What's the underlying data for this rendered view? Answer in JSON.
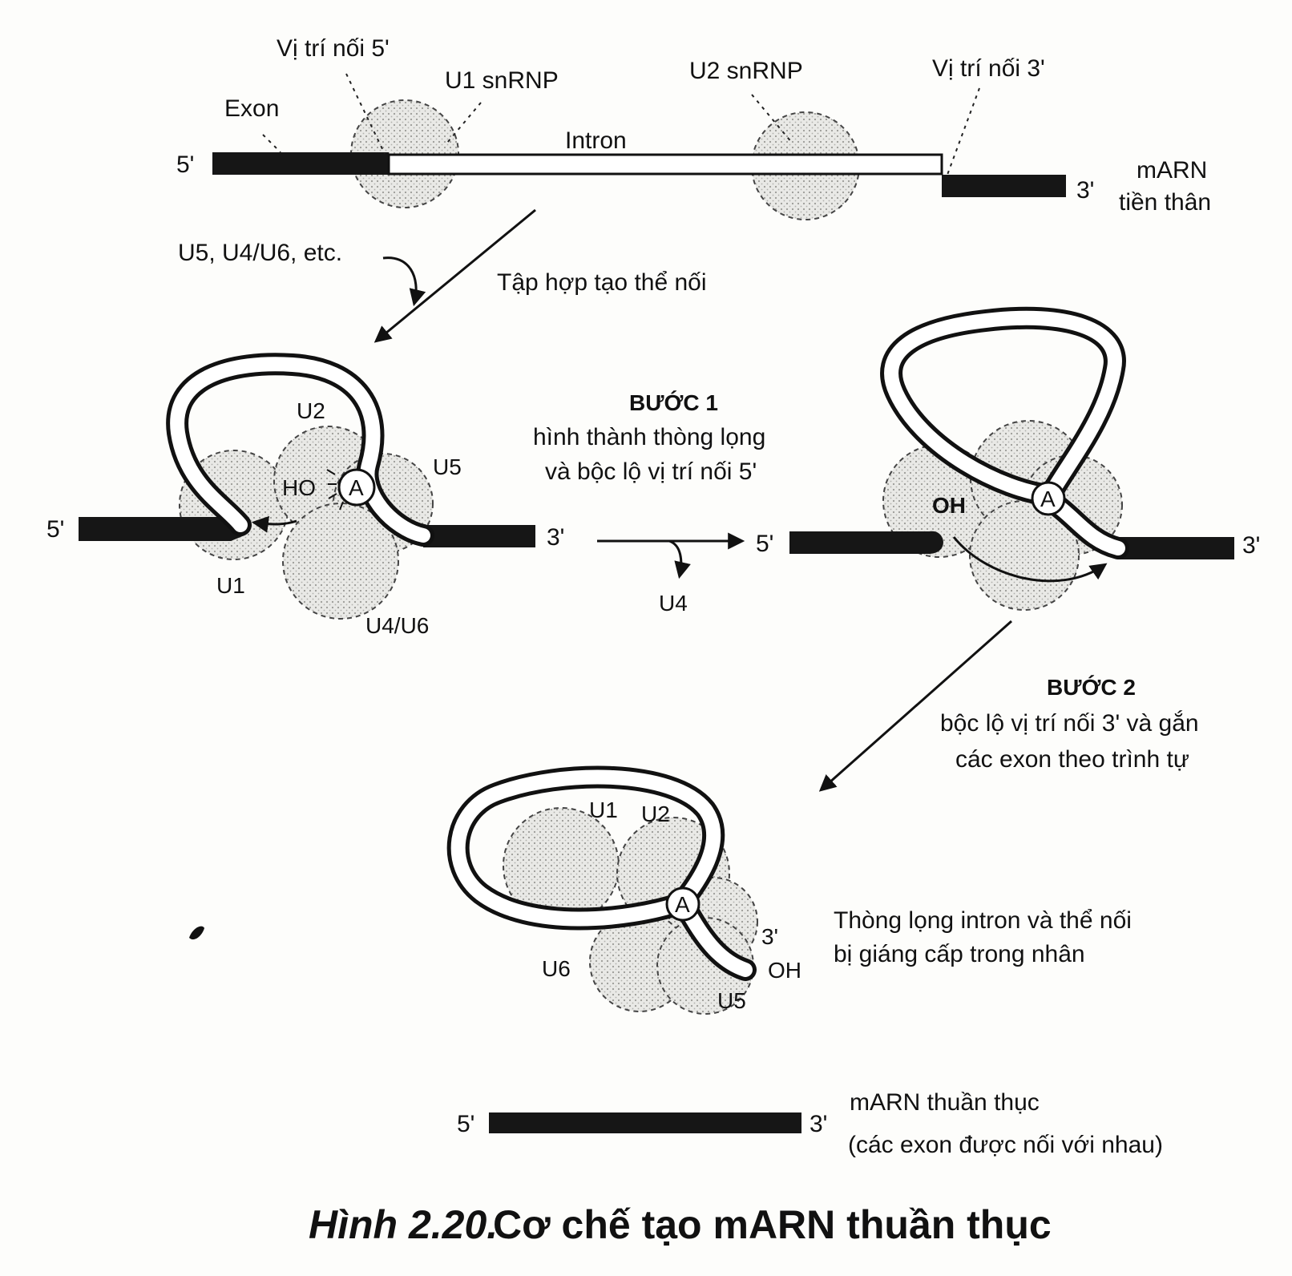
{
  "top": {
    "splice5_label": "Vị trí nối 5'",
    "u1_label": "U1 snRNP",
    "u2_label": "U2 snRNP",
    "splice3_label": "Vị trí nối 3'",
    "exon_label": "Exon",
    "intron_label": "Intron",
    "end5": "5'",
    "end3": "3'",
    "premrna_line1": "mARN",
    "premrna_line2": "tiền thân"
  },
  "assembly": {
    "factors": "U5, U4/U6, etc.",
    "label": "Tập hợp tạo thể nối"
  },
  "step1_complex": {
    "u2": "U2",
    "u5": "U5",
    "u1": "U1",
    "u4u6": "U4/U6",
    "ho": "HO",
    "a": "A",
    "end5": "5'",
    "end3": "3'"
  },
  "step1": {
    "title": "BƯỚC 1",
    "line1": "hình thành thòng lọng",
    "line2": "và bộc lộ vị trí nối 5'",
    "released": "U4"
  },
  "step1_result": {
    "oh": "OH",
    "a": "A",
    "end5": "5'",
    "end3": "3'"
  },
  "step2": {
    "title": "BƯỚC 2",
    "line1": "bộc lộ vị trí nối 3' và gắn",
    "line2": "các exon theo trình tự"
  },
  "lariat": {
    "u1": "U1",
    "u2": "U2",
    "a": "A",
    "end3": "3'",
    "oh": "OH",
    "u6": "U6",
    "u5": "U5",
    "desc_line1": "Thòng lọng intron và thể nối",
    "desc_line2": "bị giáng cấp trong nhân"
  },
  "mature": {
    "end5": "5'",
    "end3": "3'",
    "line1": "mARN thuần thục",
    "line2": "(các exon được nối với nhau)"
  },
  "caption": {
    "figure_no": "Hình 2.20.",
    "title": "Cơ chế tạo mARN thuần thục"
  }
}
